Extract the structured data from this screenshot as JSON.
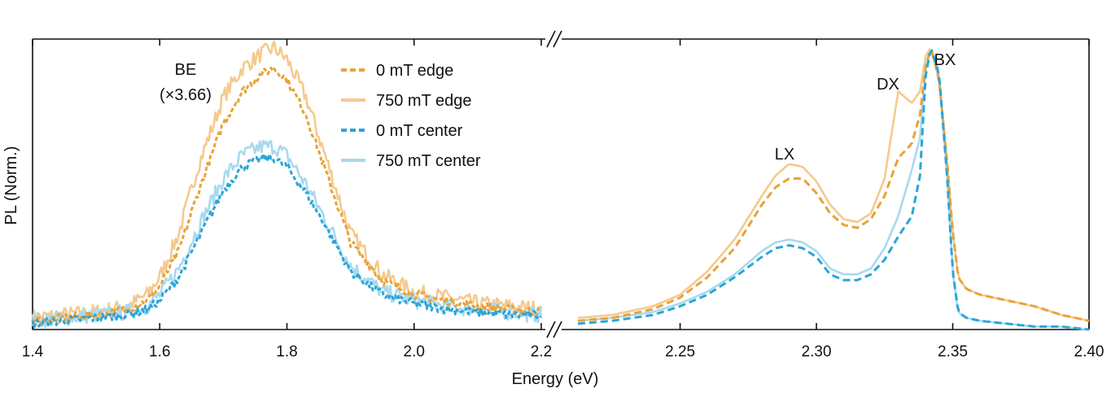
{
  "chart_data": {
    "type": "line",
    "title": "",
    "xlabel": "Energy (eV)",
    "ylabel": "PL (Norm.)",
    "x_axis_break": true,
    "panels": [
      {
        "name": "left",
        "xlim": [
          1.4,
          2.2
        ],
        "xticks": [
          1.4,
          1.6,
          1.8,
          2.0,
          2.2
        ],
        "xtick_labels": [
          "1.4",
          "1.6",
          "1.8",
          "2.0",
          "2.2"
        ]
      },
      {
        "name": "right",
        "xlim": [
          2.2125,
          2.4
        ],
        "xticks": [
          2.25,
          2.3,
          2.35,
          2.4
        ],
        "xtick_labels": [
          "2.25",
          "2.30",
          "2.35",
          "2.40"
        ]
      }
    ],
    "ylim": [
      0,
      1.0
    ],
    "legend": {
      "placement": "top-center"
    },
    "series": [
      {
        "name": "0 mT edge",
        "color": "#E8A33A",
        "style": "dashed",
        "left": {
          "x": [
            1.4,
            1.45,
            1.5,
            1.55,
            1.58,
            1.6,
            1.63,
            1.66,
            1.7,
            1.73,
            1.76,
            1.78,
            1.8,
            1.83,
            1.86,
            1.9,
            1.95,
            2.0,
            2.05,
            2.1,
            2.15,
            2.2
          ],
          "y": [
            0.03,
            0.04,
            0.05,
            0.07,
            0.1,
            0.15,
            0.27,
            0.47,
            0.71,
            0.82,
            0.88,
            0.9,
            0.86,
            0.74,
            0.55,
            0.3,
            0.17,
            0.12,
            0.1,
            0.08,
            0.07,
            0.06
          ]
        },
        "right": {
          "x": [
            2.2125,
            2.225,
            2.24,
            2.25,
            2.26,
            2.27,
            2.28,
            2.285,
            2.29,
            2.295,
            2.3,
            2.305,
            2.31,
            2.315,
            2.32,
            2.325,
            2.33,
            2.335,
            2.338,
            2.34,
            2.342,
            2.345,
            2.348,
            2.35,
            2.352,
            2.355,
            2.36,
            2.37,
            2.38,
            2.39,
            2.4
          ],
          "y": [
            0.03,
            0.04,
            0.07,
            0.11,
            0.18,
            0.28,
            0.43,
            0.49,
            0.52,
            0.52,
            0.47,
            0.4,
            0.36,
            0.35,
            0.38,
            0.46,
            0.59,
            0.64,
            0.74,
            0.9,
            0.97,
            0.86,
            0.57,
            0.34,
            0.18,
            0.14,
            0.12,
            0.1,
            0.08,
            0.05,
            0.03
          ]
        }
      },
      {
        "name": "750 mT edge",
        "color": "#F6C98D",
        "style": "solid",
        "left": {
          "x": [
            1.4,
            1.45,
            1.5,
            1.55,
            1.58,
            1.6,
            1.63,
            1.66,
            1.7,
            1.73,
            1.76,
            1.78,
            1.8,
            1.83,
            1.86,
            1.9,
            1.95,
            2.0,
            2.05,
            2.1,
            2.15,
            2.2
          ],
          "y": [
            0.04,
            0.05,
            0.06,
            0.08,
            0.12,
            0.18,
            0.33,
            0.56,
            0.8,
            0.9,
            0.95,
            0.97,
            0.93,
            0.8,
            0.6,
            0.33,
            0.19,
            0.13,
            0.11,
            0.09,
            0.08,
            0.07
          ]
        },
        "right": {
          "x": [
            2.2125,
            2.225,
            2.24,
            2.25,
            2.26,
            2.27,
            2.28,
            2.285,
            2.29,
            2.295,
            2.3,
            2.305,
            2.31,
            2.315,
            2.32,
            2.325,
            2.33,
            2.335,
            2.338,
            2.34,
            2.342,
            2.345,
            2.348,
            2.35,
            2.352,
            2.355,
            2.36,
            2.37,
            2.38,
            2.39,
            2.4
          ],
          "y": [
            0.04,
            0.05,
            0.08,
            0.12,
            0.2,
            0.31,
            0.46,
            0.53,
            0.57,
            0.56,
            0.51,
            0.43,
            0.38,
            0.37,
            0.4,
            0.52,
            0.82,
            0.78,
            0.82,
            0.94,
            0.97,
            0.86,
            0.57,
            0.34,
            0.18,
            0.14,
            0.12,
            0.1,
            0.08,
            0.05,
            0.03
          ]
        }
      },
      {
        "name": "0 mT center",
        "color": "#2BA5D8",
        "style": "dashed",
        "left": {
          "x": [
            1.4,
            1.45,
            1.5,
            1.55,
            1.58,
            1.6,
            1.63,
            1.66,
            1.7,
            1.73,
            1.76,
            1.78,
            1.8,
            1.83,
            1.86,
            1.9,
            1.95,
            2.0,
            2.05,
            2.1,
            2.15,
            2.2
          ],
          "y": [
            0.02,
            0.03,
            0.04,
            0.05,
            0.07,
            0.1,
            0.18,
            0.31,
            0.48,
            0.56,
            0.59,
            0.59,
            0.56,
            0.47,
            0.36,
            0.2,
            0.12,
            0.09,
            0.07,
            0.06,
            0.05,
            0.05
          ]
        },
        "right": {
          "x": [
            2.2125,
            2.225,
            2.24,
            2.25,
            2.26,
            2.27,
            2.28,
            2.285,
            2.29,
            2.295,
            2.3,
            2.305,
            2.31,
            2.315,
            2.32,
            2.325,
            2.33,
            2.335,
            2.338,
            2.34,
            2.342,
            2.345,
            2.348,
            2.35,
            2.352,
            2.355,
            2.36,
            2.37,
            2.38,
            2.39,
            2.4
          ],
          "y": [
            0.02,
            0.03,
            0.05,
            0.08,
            0.12,
            0.18,
            0.25,
            0.28,
            0.29,
            0.28,
            0.25,
            0.19,
            0.17,
            0.17,
            0.19,
            0.24,
            0.32,
            0.39,
            0.53,
            0.87,
            0.97,
            0.88,
            0.52,
            0.2,
            0.06,
            0.04,
            0.03,
            0.02,
            0.01,
            0.01,
            0.0
          ]
        }
      },
      {
        "name": "750 mT center",
        "color": "#A8D9EF",
        "style": "solid",
        "left": {
          "x": [
            1.4,
            1.45,
            1.5,
            1.55,
            1.58,
            1.6,
            1.63,
            1.66,
            1.7,
            1.73,
            1.76,
            1.78,
            1.8,
            1.83,
            1.86,
            1.9,
            1.95,
            2.0,
            2.05,
            2.1,
            2.15,
            2.2
          ],
          "y": [
            0.03,
            0.04,
            0.05,
            0.06,
            0.08,
            0.12,
            0.21,
            0.35,
            0.52,
            0.6,
            0.63,
            0.63,
            0.6,
            0.5,
            0.38,
            0.22,
            0.13,
            0.1,
            0.08,
            0.07,
            0.06,
            0.05
          ]
        },
        "right": {
          "x": [
            2.2125,
            2.225,
            2.24,
            2.25,
            2.26,
            2.27,
            2.28,
            2.285,
            2.29,
            2.295,
            2.3,
            2.305,
            2.31,
            2.315,
            2.32,
            2.325,
            2.33,
            2.335,
            2.338,
            2.34,
            2.342,
            2.345,
            2.348,
            2.35,
            2.352,
            2.355,
            2.36,
            2.37,
            2.38,
            2.39,
            2.4
          ],
          "y": [
            0.03,
            0.04,
            0.06,
            0.09,
            0.13,
            0.19,
            0.27,
            0.3,
            0.31,
            0.3,
            0.27,
            0.21,
            0.19,
            0.19,
            0.21,
            0.28,
            0.39,
            0.55,
            0.66,
            0.9,
            0.97,
            0.88,
            0.52,
            0.2,
            0.06,
            0.04,
            0.03,
            0.02,
            0.01,
            0.01,
            0.0
          ]
        }
      }
    ],
    "annotations": [
      {
        "id": "be",
        "text": "BE"
      },
      {
        "id": "be-scale",
        "text": "(×3.66)"
      },
      {
        "id": "lx",
        "text": "LX"
      },
      {
        "id": "dx",
        "text": "DX"
      },
      {
        "id": "bx",
        "text": "BX"
      }
    ]
  }
}
